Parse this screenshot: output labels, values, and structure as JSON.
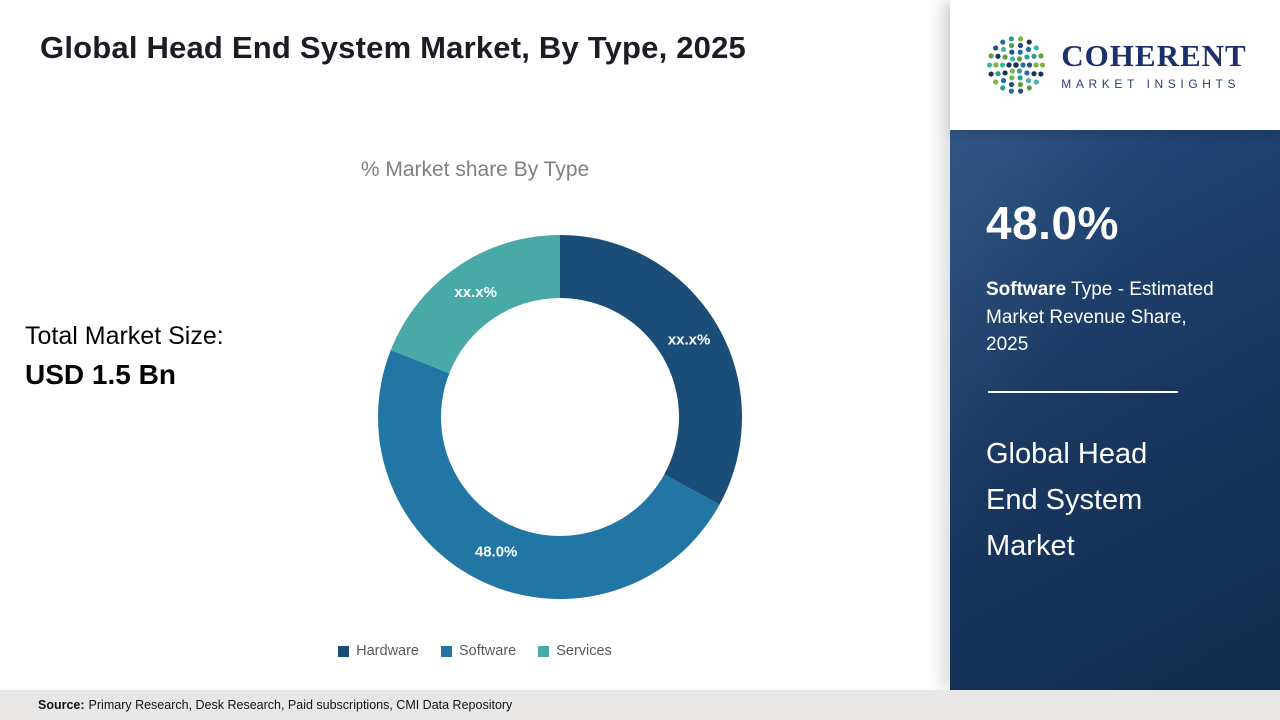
{
  "header": {
    "title": "Global Head End System Market, By Type, 2025"
  },
  "logo": {
    "name": "COHERENT",
    "subtitle": "MARKET INSIGHTS",
    "icon": "dot-globe-icon"
  },
  "left_stat": {
    "label": "Total Market Size:",
    "value": "USD 1.5 Bn"
  },
  "chart_data": {
    "type": "pie",
    "donut": true,
    "title": "% Market share By Type",
    "legend_position": "bottom",
    "hole_color": "#ffffff",
    "series": [
      {
        "name": "Hardware",
        "value": 33,
        "label": "xx.x%",
        "color": "#1a4e78"
      },
      {
        "name": "Software",
        "value": 48,
        "label": "48.0%",
        "color": "#2176a3"
      },
      {
        "name": "Services",
        "value": 19,
        "label": "xx.x%",
        "color": "#48a9a6"
      }
    ]
  },
  "sidebar": {
    "stat_value": "48.0%",
    "stat_label_bold": "Software",
    "stat_label_rest": " Type - Estimated Market Revenue Share, 2025",
    "product_title": "Global Head End System Market"
  },
  "footer": {
    "source_label": "Source:",
    "source_text": "Primary Research, Desk Research, Paid subscriptions, CMI Data Repository"
  }
}
